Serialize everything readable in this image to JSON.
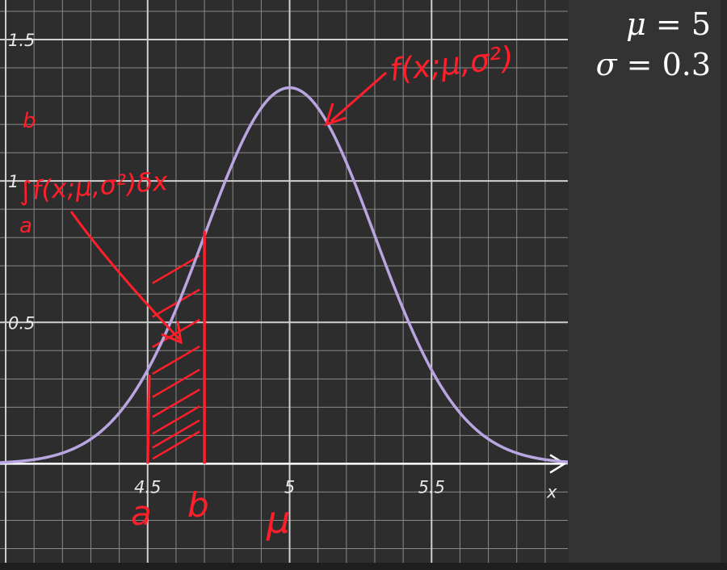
{
  "chart_data": {
    "type": "line",
    "title": "",
    "xlabel": "x",
    "ylabel": "",
    "xlim": [
      3.98,
      5.98
    ],
    "ylim": [
      -0.35,
      1.64
    ],
    "x_ticks": [
      4.5,
      5,
      5.5
    ],
    "x_tick_labels": [
      "4.5",
      "5",
      "5.5"
    ],
    "y_ticks": [
      0.5,
      1,
      1.5
    ],
    "y_tick_labels": [
      "0.5",
      "1",
      "1.5"
    ],
    "grid": true,
    "series": [
      {
        "name": "",
        "function": "normal_pdf",
        "mu": 5,
        "sigma": 0.3,
        "color": "#b9a5e0"
      }
    ],
    "shaded_region": {
      "x_from": 4.5,
      "x_to": 4.7,
      "color": "#ff1e2a"
    },
    "annotations": {
      "curve_label": "f(x;μ,σ²)",
      "integral_label": "∫f(x;μ,σ²)δx",
      "integral_upper": "b",
      "integral_lower": "a",
      "marker_a": "a",
      "marker_b": "b",
      "marker_mu": "μ"
    }
  },
  "parameters": {
    "mu": {
      "symbol": "μ",
      "value": "5"
    },
    "sigma": {
      "symbol": "σ",
      "value": "0.3"
    }
  },
  "colors": {
    "background": "#2d2d2d",
    "grid_major": "#cfcfcf",
    "grid_minor": "#8a8a8a",
    "axis": "#ffffff",
    "curve": "#b9a5e0",
    "annotation": "#ff1e2a"
  }
}
